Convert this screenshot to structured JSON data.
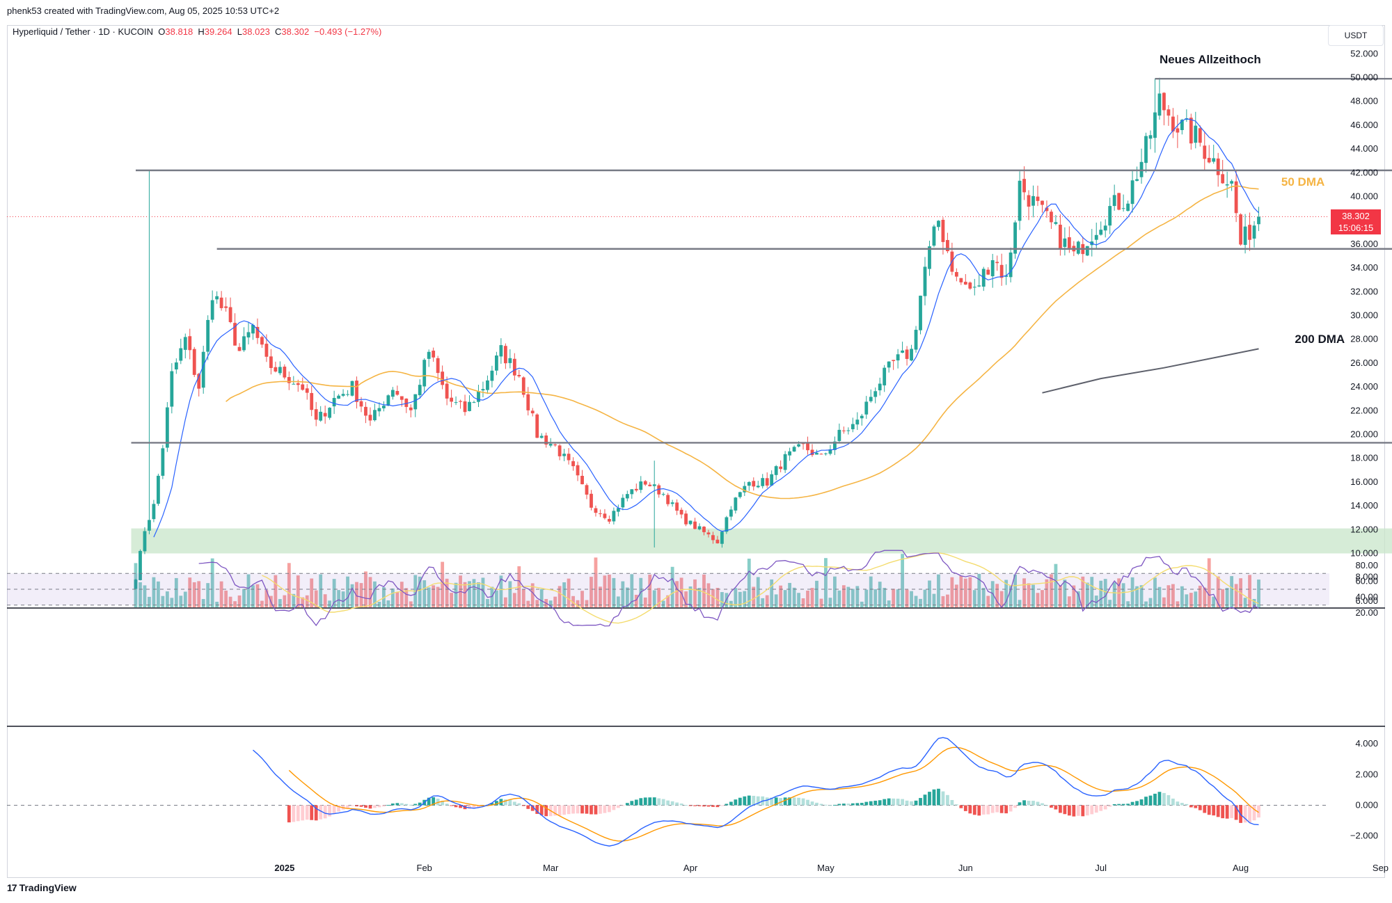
{
  "header": {
    "created_by": "phenk53 created with TradingView.com, Aug 05, 2025 10:53 UTC+2",
    "symbol": "Hyperliquid / Tether · 1D · KUCOIN",
    "o_label": "O",
    "o_value": "38.818",
    "h_label": "H",
    "h_value": "39.264",
    "l_label": "L",
    "l_value": "38.023",
    "c_label": "C",
    "c_value": "38.302",
    "change": "−0.493 (−1.27%)",
    "currency": "USDT"
  },
  "price_tag": {
    "price": "38.302",
    "countdown": "15:06:15"
  },
  "annotations": {
    "ath": "Neues Allzeithoch",
    "dma50": "50 DMA",
    "dma200": "200 DMA"
  },
  "footer": {
    "brand": "TradingView",
    "logo_text": "17"
  },
  "colors": {
    "up": "#26a69a",
    "down": "#ef5350",
    "ma50": "#f5b443",
    "ma_short": "#2962ff",
    "rsi": "#7e57c2",
    "rsi_ma": "#f4dc6e",
    "macd": "#2962ff",
    "signal": "#ff9800",
    "zone": "#c8e6c9",
    "line": "#6b6b6b"
  },
  "chart_data": [
    {
      "type": "candlestick",
      "title": "Hyperliquid / Tether · 1D · KUCOIN",
      "y_axis_ticks": [
        "52.000",
        "50.000",
        "48.000",
        "46.000",
        "44.000",
        "42.000",
        "40.000",
        "38.000",
        "36.000",
        "34.000",
        "32.000",
        "30.000",
        "28.000",
        "26.000",
        "24.000",
        "22.000",
        "20.000",
        "18.000",
        "16.000",
        "14.000",
        "12.000",
        "10.000",
        "8.000",
        "6.000"
      ],
      "x_axis_ticks": [
        "2025",
        "Feb",
        "Mar",
        "Apr",
        "May",
        "Jun",
        "Jul",
        "Aug",
        "Sep"
      ],
      "ylim": [
        5.5,
        53
      ],
      "date_range": [
        "2024-11-29",
        "2025-08-05"
      ],
      "close_path": [
        [
          "2024-11-29",
          8
        ],
        [
          "2024-12-01",
          12
        ],
        [
          "2024-12-03",
          14
        ],
        [
          "2024-12-05",
          19
        ],
        [
          "2024-12-07",
          25
        ],
        [
          "2024-12-10",
          28
        ],
        [
          "2024-12-13",
          24
        ],
        [
          "2024-12-16",
          32
        ],
        [
          "2024-12-19",
          30
        ],
        [
          "2024-12-22",
          27
        ],
        [
          "2024-12-25",
          29
        ],
        [
          "2024-12-28",
          26
        ],
        [
          "2025-01-01",
          25
        ],
        [
          "2025-01-05",
          24
        ],
        [
          "2025-01-08",
          21
        ],
        [
          "2025-01-12",
          23
        ],
        [
          "2025-01-16",
          24
        ],
        [
          "2025-01-20",
          21
        ],
        [
          "2025-01-25",
          24
        ],
        [
          "2025-01-29",
          22
        ],
        [
          "2025-02-02",
          27
        ],
        [
          "2025-02-06",
          23
        ],
        [
          "2025-02-10",
          22
        ],
        [
          "2025-02-14",
          24
        ],
        [
          "2025-02-18",
          27
        ],
        [
          "2025-02-22",
          25
        ],
        [
          "2025-02-26",
          20
        ],
        [
          "2025-03-02",
          19
        ],
        [
          "2025-03-06",
          17
        ],
        [
          "2025-03-10",
          14
        ],
        [
          "2025-03-14",
          13
        ],
        [
          "2025-03-18",
          15
        ],
        [
          "2025-03-22",
          16
        ],
        [
          "2025-03-26",
          15
        ],
        [
          "2025-03-30",
          13
        ],
        [
          "2025-04-03",
          12
        ],
        [
          "2025-04-07",
          11
        ],
        [
          "2025-04-10",
          14
        ],
        [
          "2025-04-14",
          16
        ],
        [
          "2025-04-18",
          16
        ],
        [
          "2025-04-22",
          18
        ],
        [
          "2025-04-26",
          19
        ],
        [
          "2025-04-30",
          18
        ],
        [
          "2025-05-04",
          20
        ],
        [
          "2025-05-08",
          21
        ],
        [
          "2025-05-12",
          24
        ],
        [
          "2025-05-16",
          26
        ],
        [
          "2025-05-20",
          27
        ],
        [
          "2025-05-23",
          34
        ],
        [
          "2025-05-26",
          38
        ],
        [
          "2025-05-30",
          33
        ],
        [
          "2025-06-03",
          32
        ],
        [
          "2025-06-07",
          35
        ],
        [
          "2025-06-10",
          33
        ],
        [
          "2025-06-13",
          41
        ],
        [
          "2025-06-17",
          39
        ],
        [
          "2025-06-21",
          37
        ],
        [
          "2025-06-25",
          35
        ],
        [
          "2025-06-29",
          37
        ],
        [
          "2025-07-03",
          39
        ],
        [
          "2025-07-07",
          40
        ],
        [
          "2025-07-11",
          44
        ],
        [
          "2025-07-14",
          48
        ],
        [
          "2025-07-18",
          46
        ],
        [
          "2025-07-22",
          45
        ],
        [
          "2025-07-26",
          43
        ],
        [
          "2025-07-30",
          41
        ],
        [
          "2025-08-01",
          36
        ],
        [
          "2025-08-05",
          38.3
        ]
      ],
      "sma200_path": [
        [
          "2025-06-18",
          23.5
        ],
        [
          "2025-07-01",
          24.7
        ],
        [
          "2025-07-15",
          25.6
        ],
        [
          "2025-08-05",
          27.2
        ]
      ],
      "levels": [
        {
          "price": 49.9,
          "from": "2025-07-13",
          "to": "2025-09-10"
        },
        {
          "price": 42.2,
          "from": "2024-11-29",
          "to": "2025-09-10"
        },
        {
          "price": 35.6,
          "from": "2024-12-17",
          "to": "2025-09-10"
        },
        {
          "price": 19.3,
          "from": "2024-11-28",
          "to": "2025-09-10"
        }
      ],
      "zone": {
        "low": 10,
        "high": 12.1
      },
      "last_price": 38.302
    },
    {
      "type": "line",
      "title": "RSI",
      "y_axis_ticks": [
        "80.00",
        "60.00",
        "40.00",
        "20.00"
      ],
      "ylim": [
        20,
        82
      ],
      "bands": [
        70,
        50,
        30
      ]
    },
    {
      "type": "line",
      "title": "MACD",
      "y_axis_ticks": [
        "4.000",
        "2.000",
        "0.000",
        "−2.000"
      ],
      "ylim": [
        -3,
        4.5
      ]
    }
  ]
}
